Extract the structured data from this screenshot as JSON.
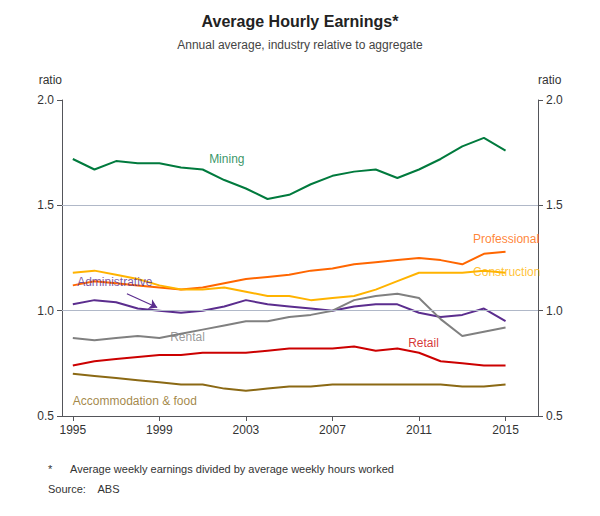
{
  "chart_data": {
    "type": "line",
    "title": "Average Hourly Earnings*",
    "subtitle": "Annual average, industry relative to aggregate",
    "y_label": "ratio",
    "y2_label": "ratio",
    "footnotes": [
      "*      Average weekly earnings divided by average weekly hours worked",
      "Source:    ABS"
    ],
    "x": [
      1995,
      1996,
      1997,
      1998,
      1999,
      2000,
      2001,
      2002,
      2003,
      2004,
      2005,
      2006,
      2007,
      2008,
      2009,
      2010,
      2011,
      2012,
      2013,
      2014,
      2015
    ],
    "xlim": [
      1994.5,
      2016.5
    ],
    "xticks": [
      1995,
      1999,
      2003,
      2007,
      2011,
      2015
    ],
    "ylim": [
      0.5,
      2.0
    ],
    "yticks": [
      0.5,
      {
        "value": 1.0,
        "label": "1.0"
      },
      1.5,
      {
        "value": 2.0,
        "label": "2.0"
      }
    ],
    "y2lim": [
      0.5,
      2.0
    ],
    "y2ticks": [
      0.5,
      {
        "value": 1.0,
        "label": "1.0"
      },
      1.5,
      {
        "value": 2.0,
        "label": "2.0"
      }
    ],
    "grid": false,
    "reference_lines": [
      {
        "y": 1.0,
        "color": "#B0B8C8"
      },
      {
        "y": 1.5,
        "color": "#B0B8C8"
      }
    ],
    "series": [
      {
        "name": "Mining",
        "color": "#007A3D",
        "values": [
          1.72,
          1.67,
          1.71,
          1.7,
          1.7,
          1.68,
          1.67,
          1.62,
          1.58,
          1.53,
          1.55,
          1.6,
          1.64,
          1.66,
          1.67,
          1.63,
          1.67,
          1.72,
          1.78,
          1.82,
          1.76
        ]
      },
      {
        "name": "Professional",
        "color": "#FF6600",
        "values": [
          1.12,
          1.14,
          1.13,
          1.12,
          1.11,
          1.1,
          1.11,
          1.13,
          1.15,
          1.16,
          1.17,
          1.19,
          1.2,
          1.22,
          1.23,
          1.24,
          1.25,
          1.24,
          1.22,
          1.27,
          1.28
        ]
      },
      {
        "name": "Construction",
        "color": "#FFB300",
        "values": [
          1.18,
          1.19,
          1.17,
          1.15,
          1.12,
          1.1,
          1.1,
          1.11,
          1.09,
          1.07,
          1.07,
          1.05,
          1.06,
          1.07,
          1.1,
          1.14,
          1.18,
          1.18,
          1.18,
          1.19,
          1.18
        ]
      },
      {
        "name": "Administrative",
        "color": "#5B2D8E",
        "values": [
          1.03,
          1.05,
          1.04,
          1.01,
          1.0,
          0.99,
          1.0,
          1.02,
          1.05,
          1.03,
          1.02,
          1.01,
          1.0,
          1.02,
          1.03,
          1.03,
          0.99,
          0.97,
          0.98,
          1.01,
          0.95
        ]
      },
      {
        "name": "Rental",
        "color": "#808080",
        "values": [
          0.87,
          0.86,
          0.87,
          0.88,
          0.87,
          0.89,
          0.91,
          0.93,
          0.95,
          0.95,
          0.97,
          0.98,
          1.0,
          1.05,
          1.07,
          1.08,
          1.06,
          0.96,
          0.88,
          0.9,
          0.92
        ]
      },
      {
        "name": "Retail",
        "color": "#CC0000",
        "values": [
          0.74,
          0.76,
          0.77,
          0.78,
          0.79,
          0.79,
          0.8,
          0.8,
          0.8,
          0.81,
          0.82,
          0.82,
          0.82,
          0.83,
          0.81,
          0.82,
          0.8,
          0.76,
          0.75,
          0.74,
          0.74
        ]
      },
      {
        "name": "Accommodation & food",
        "color": "#8B6914",
        "values": [
          0.7,
          0.69,
          0.68,
          0.67,
          0.66,
          0.65,
          0.65,
          0.63,
          0.62,
          0.63,
          0.64,
          0.64,
          0.65,
          0.65,
          0.65,
          0.65,
          0.65,
          0.65,
          0.64,
          0.64,
          0.65
        ]
      }
    ],
    "annotations": [
      {
        "text": "Mining",
        "x": 2001.3,
        "y": 1.72,
        "color": "#007A3D"
      },
      {
        "text": "Professional",
        "x": 2013.5,
        "y": 1.34,
        "color": "#FF6600"
      },
      {
        "text": "Construction",
        "x": 2013.5,
        "y": 1.185,
        "color": "#FFB300"
      },
      {
        "text": "Administrative",
        "x": 1995.2,
        "y": 1.135,
        "color": "#5B2D8E",
        "arrow_from": [
          1997.5,
          1.08
        ],
        "arrow_to": [
          1998.9,
          1.015
        ]
      },
      {
        "text": "Rental",
        "x": 1999.5,
        "y": 0.875,
        "color": "#808080"
      },
      {
        "text": "Retail",
        "x": 2010.5,
        "y": 0.845,
        "color": "#CC0000"
      },
      {
        "text": "Accommodation & food",
        "x": 1995.0,
        "y": 0.572,
        "color": "#8B6914"
      }
    ]
  }
}
